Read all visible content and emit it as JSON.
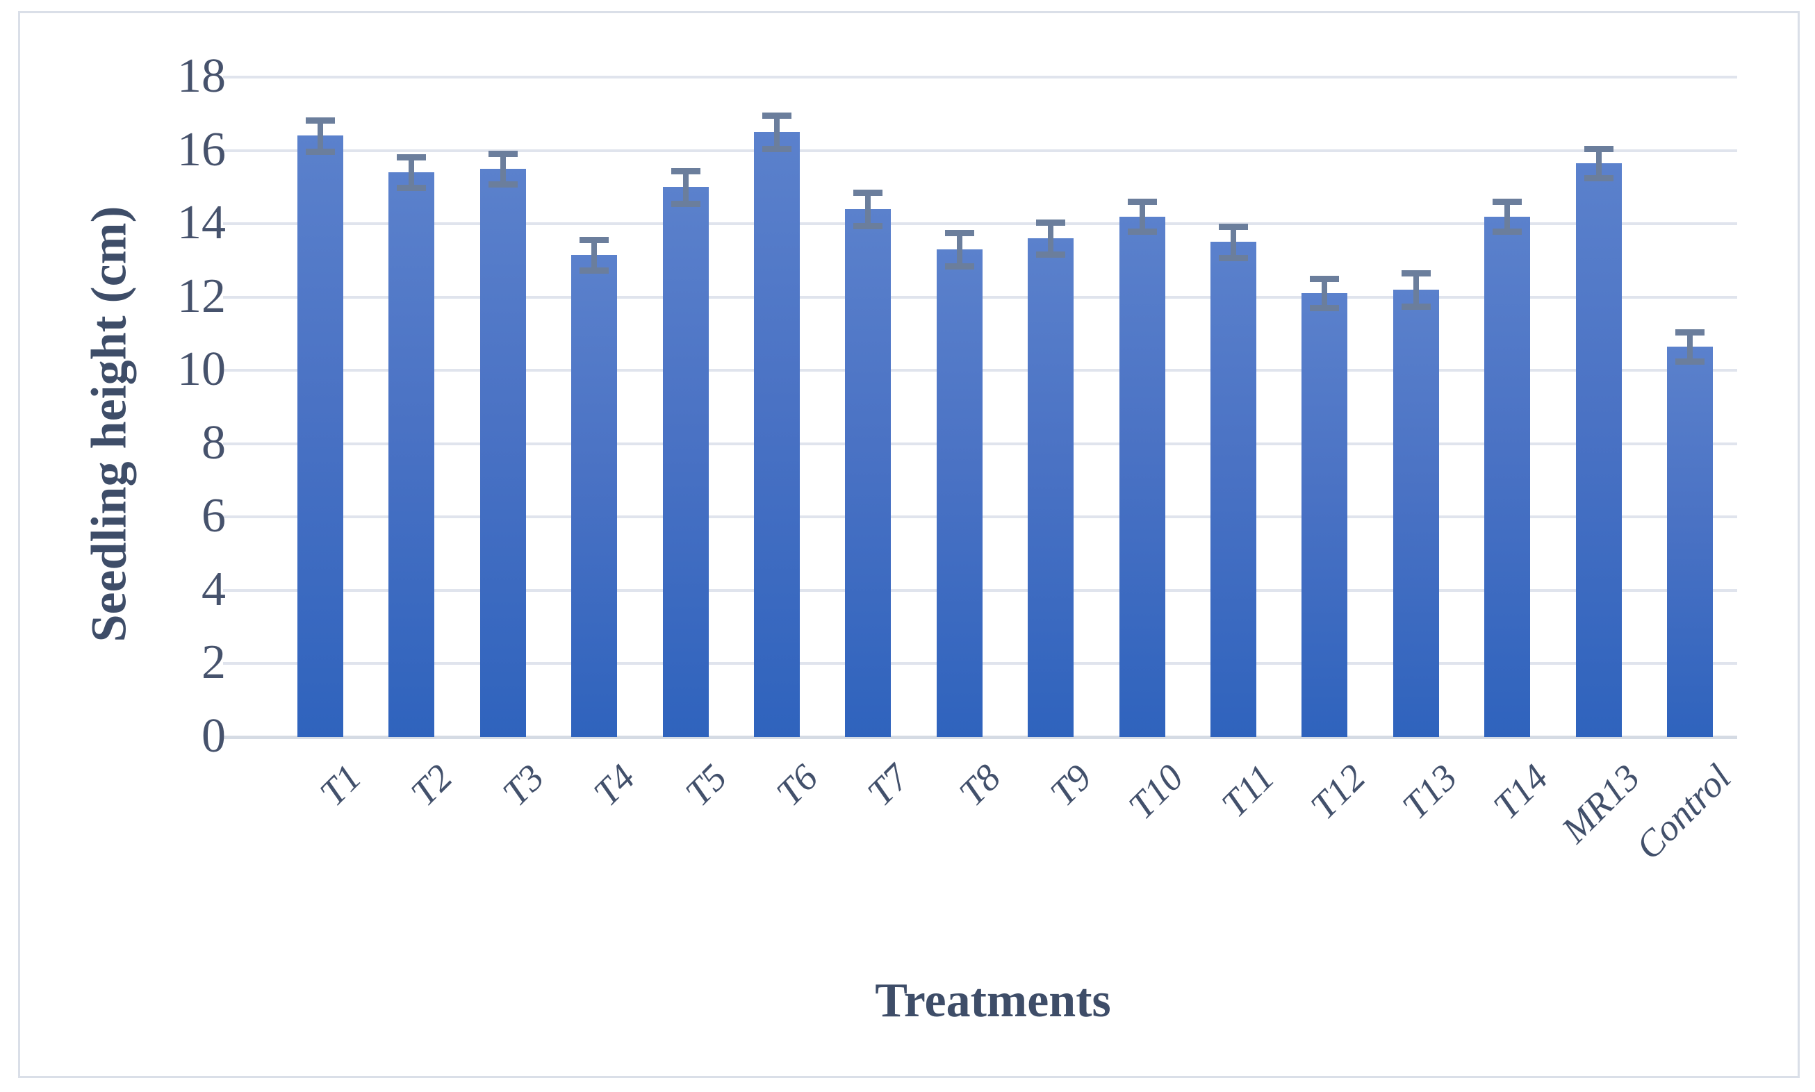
{
  "figure": {
    "background_color": "#ffffff",
    "border_color": "#dadfe8"
  },
  "chart_data": {
    "type": "bar",
    "title": "",
    "xlabel": "Treatments",
    "ylabel": "Seedling height (cm)",
    "categories": [
      "T1",
      "T2",
      "T3",
      "T4",
      "T5",
      "T6",
      "T7",
      "T8",
      "T9",
      "T10",
      "T11",
      "T12",
      "T13",
      "T14",
      "MR13",
      "Control"
    ],
    "series": [
      {
        "name": "Seedling height (cm)",
        "values": [
          16.4,
          15.4,
          15.5,
          13.15,
          15.0,
          16.5,
          14.4,
          13.3,
          13.6,
          14.2,
          13.5,
          12.1,
          12.2,
          14.2,
          15.65,
          10.65
        ],
        "error_bars": [
          0.42,
          0.42,
          0.42,
          0.42,
          0.45,
          0.45,
          0.45,
          0.45,
          0.44,
          0.4,
          0.42,
          0.4,
          0.45,
          0.4,
          0.4,
          0.4
        ]
      }
    ],
    "ylim": [
      0,
      18
    ],
    "yticks": [
      0,
      2,
      4,
      6,
      8,
      10,
      12,
      14,
      16,
      18
    ],
    "grid": true,
    "legend": false,
    "bar_color_top": "#5b81cc",
    "bar_color_bottom": "#2f63bd",
    "error_bar_color": "#6b7e9c",
    "gridline_color": "#e0e4ed",
    "tick_label_color": "#46526c",
    "axis_title_color": "#3e4d68",
    "category_label_color": "#42506b"
  }
}
